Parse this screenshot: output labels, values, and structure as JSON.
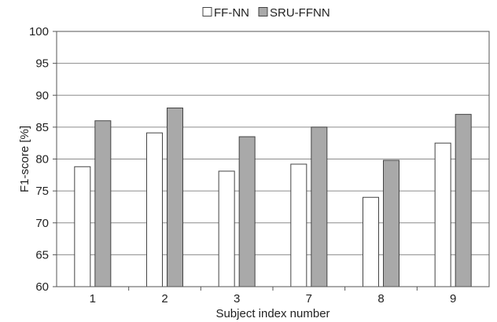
{
  "chart_data": {
    "type": "bar",
    "title": "",
    "xlabel": "Subject index  number",
    "ylabel": "F1-score [%]",
    "ylim": [
      60,
      100
    ],
    "yticks": [
      60,
      65,
      70,
      75,
      80,
      85,
      90,
      95,
      100
    ],
    "grid": true,
    "legend_position": "top-center",
    "categories": [
      "1",
      "2",
      "3",
      "7",
      "8",
      "9"
    ],
    "series": [
      {
        "name": "FF-NN",
        "color": "#ffffff",
        "values": [
          78.8,
          84.1,
          78.1,
          79.2,
          74.0,
          82.5
        ]
      },
      {
        "name": "SRU-FFNN",
        "color": "#a9a9a9",
        "values": [
          86.0,
          88.0,
          83.5,
          85.0,
          79.8,
          87.0
        ]
      }
    ]
  }
}
